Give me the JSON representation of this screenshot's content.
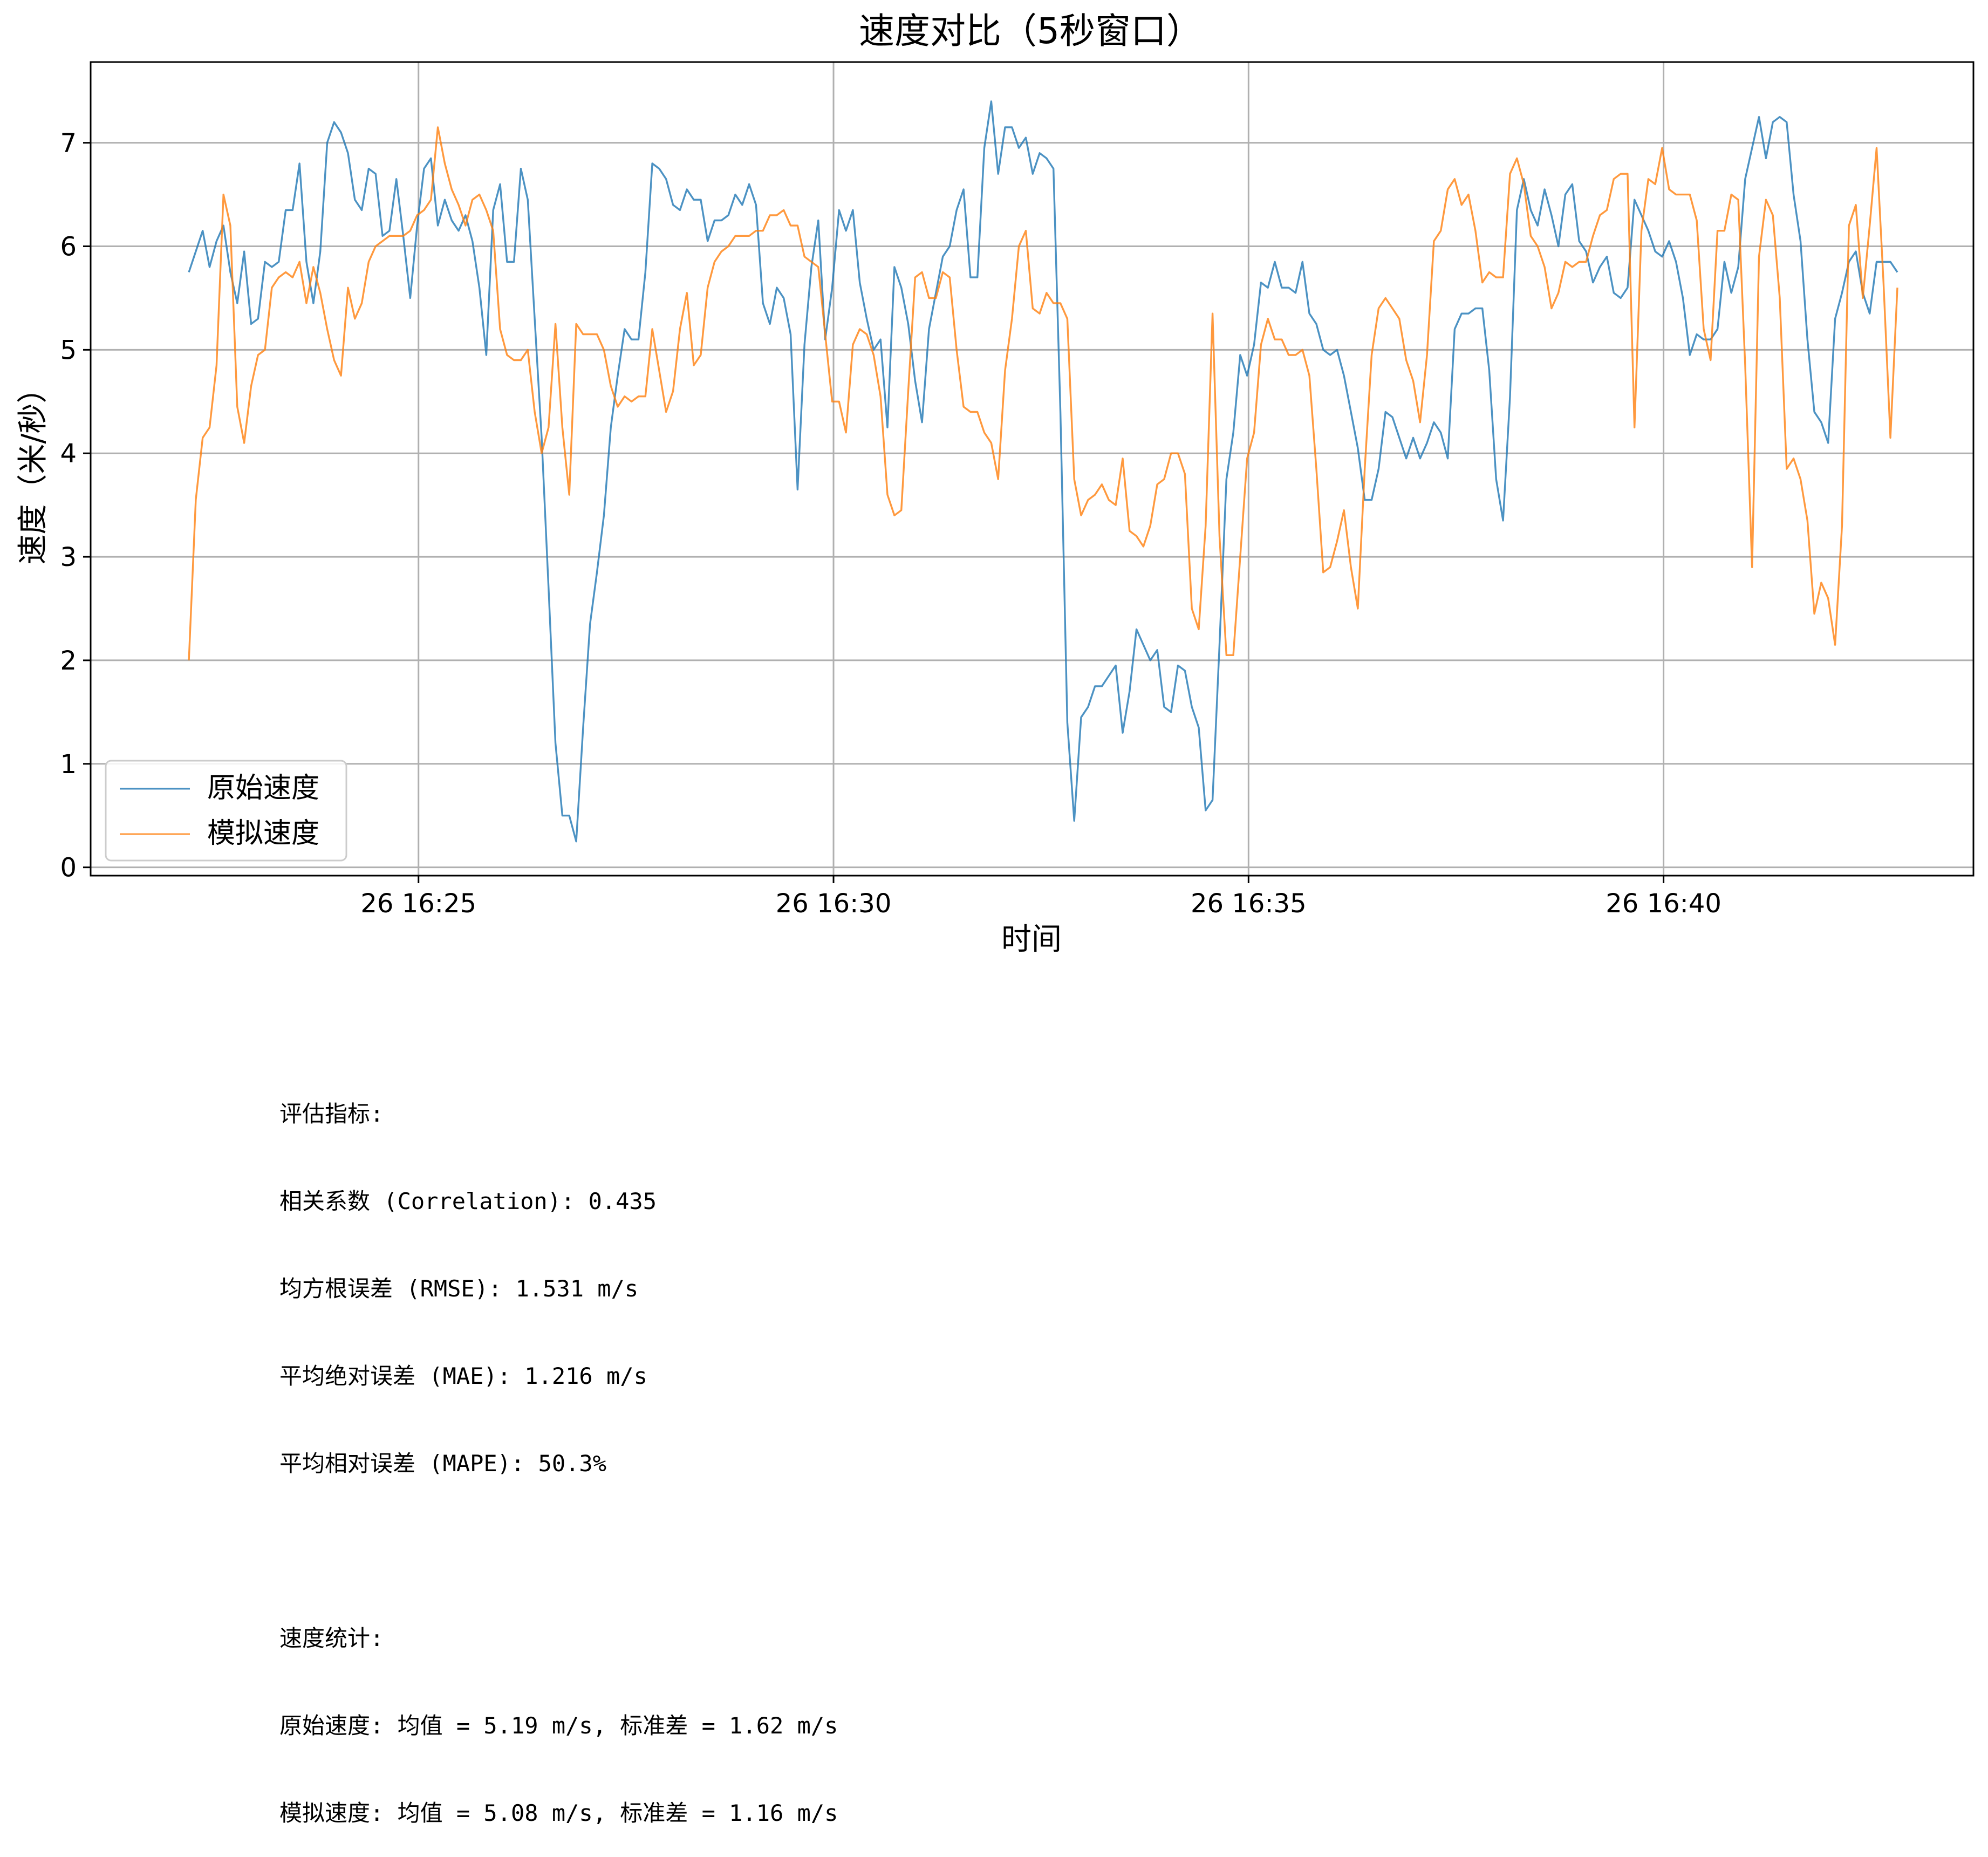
{
  "chart_data": {
    "type": "line",
    "title": "速度对比（5秒窗口）",
    "xlabel": "时间",
    "ylabel": "速度（米/秒）",
    "x_start": "16:22:14",
    "x_interval_seconds": 5,
    "xlim": [
      "16:21:03",
      "16:43:44"
    ],
    "ylim": [
      -0.08,
      7.78
    ],
    "x_ticks": [
      "26 16:25",
      "26 16:30",
      "26 16:35",
      "26 16:40"
    ],
    "y_ticks": [
      "0",
      "1",
      "2",
      "3",
      "4",
      "5",
      "6",
      "7"
    ],
    "grid": true,
    "legend_position": "lower-left",
    "series": [
      {
        "name": "原始速度",
        "color": "#1f77b4",
        "values": [
          5.75,
          5.95,
          6.15,
          5.8,
          6.05,
          6.2,
          5.75,
          5.45,
          5.95,
          5.25,
          5.3,
          5.85,
          5.8,
          5.85,
          6.35,
          6.35,
          6.8,
          5.85,
          5.45,
          5.95,
          7.0,
          7.2,
          7.1,
          6.9,
          6.45,
          6.35,
          6.75,
          6.7,
          6.1,
          6.15,
          6.65,
          6.1,
          5.5,
          6.2,
          6.75,
          6.85,
          6.2,
          6.45,
          6.25,
          6.15,
          6.3,
          6.05,
          5.6,
          4.95,
          6.35,
          6.6,
          5.85,
          5.85,
          6.75,
          6.45,
          5.3,
          4.15,
          2.7,
          1.2,
          0.5,
          0.5,
          0.25,
          1.35,
          2.35,
          2.85,
          3.4,
          4.25,
          4.75,
          5.2,
          5.1,
          5.1,
          5.75,
          6.8,
          6.75,
          6.65,
          6.4,
          6.35,
          6.55,
          6.45,
          6.45,
          6.05,
          6.25,
          6.25,
          6.3,
          6.5,
          6.4,
          6.6,
          6.4,
          5.45,
          5.25,
          5.6,
          5.5,
          5.15,
          3.65,
          5.05,
          5.8,
          6.25,
          5.1,
          5.6,
          6.35,
          6.15,
          6.35,
          5.65,
          5.3,
          5.0,
          5.1,
          4.25,
          5.8,
          5.6,
          5.25,
          4.7,
          4.3,
          5.2,
          5.55,
          5.9,
          6.0,
          6.35,
          6.55,
          5.7,
          5.7,
          6.95,
          7.4,
          6.7,
          7.15,
          7.15,
          6.95,
          7.05,
          6.7,
          6.9,
          6.85,
          6.75,
          4.4,
          1.4,
          0.45,
          1.45,
          1.55,
          1.75,
          1.75,
          1.85,
          1.95,
          1.3,
          1.7,
          2.3,
          2.15,
          2.0,
          2.1,
          1.55,
          1.5,
          1.95,
          1.9,
          1.55,
          1.35,
          0.55,
          0.65,
          2.15,
          3.75,
          4.2,
          4.95,
          4.75,
          5.05,
          5.65,
          5.6,
          5.85,
          5.6,
          5.6,
          5.55,
          5.85,
          5.35,
          5.25,
          5.0,
          4.95,
          5.0,
          4.75,
          4.4,
          4.05,
          3.55,
          3.55,
          3.85,
          4.4,
          4.35,
          4.15,
          3.95,
          4.15,
          3.95,
          4.1,
          4.3,
          4.2,
          3.95,
          5.2,
          5.35,
          5.35,
          5.4,
          5.4,
          4.8,
          3.75,
          3.35,
          4.55,
          6.35,
          6.65,
          6.35,
          6.2,
          6.55,
          6.3,
          6.0,
          6.5,
          6.6,
          6.05,
          5.95,
          5.65,
          5.8,
          5.9,
          5.55,
          5.5,
          5.6,
          6.45,
          6.3,
          6.15,
          5.95,
          5.9,
          6.05,
          5.85,
          5.5,
          4.95,
          5.15,
          5.1,
          5.1,
          5.2,
          5.85,
          5.55,
          5.8,
          6.65,
          6.95,
          7.25,
          6.85,
          7.2,
          7.25,
          7.2,
          6.5,
          6.05,
          5.1,
          4.4,
          4.3,
          4.1,
          5.3,
          5.55,
          5.85,
          5.95,
          5.55,
          5.35,
          5.85,
          5.85,
          5.85,
          5.75
        ]
      },
      {
        "name": "模拟速度",
        "color": "#ff7f0e",
        "values": [
          2.0,
          3.55,
          4.15,
          4.25,
          4.85,
          6.5,
          6.2,
          4.45,
          4.1,
          4.65,
          4.95,
          5.0,
          5.6,
          5.7,
          5.75,
          5.7,
          5.85,
          5.45,
          5.8,
          5.55,
          5.2,
          4.9,
          4.75,
          5.6,
          5.3,
          5.45,
          5.85,
          6.0,
          6.05,
          6.1,
          6.1,
          6.1,
          6.15,
          6.3,
          6.35,
          6.45,
          7.15,
          6.8,
          6.55,
          6.4,
          6.2,
          6.45,
          6.5,
          6.35,
          6.15,
          5.2,
          4.95,
          4.9,
          4.9,
          5.0,
          4.4,
          4.0,
          4.25,
          5.25,
          4.25,
          3.6,
          5.25,
          5.15,
          5.15,
          5.15,
          5.0,
          4.65,
          4.45,
          4.55,
          4.5,
          4.55,
          4.55,
          5.2,
          4.8,
          4.4,
          4.6,
          5.2,
          5.55,
          4.85,
          4.95,
          5.6,
          5.85,
          5.95,
          6.0,
          6.1,
          6.1,
          6.1,
          6.15,
          6.15,
          6.3,
          6.3,
          6.35,
          6.2,
          6.2,
          5.9,
          5.85,
          5.8,
          5.15,
          4.5,
          4.5,
          4.2,
          5.05,
          5.2,
          5.15,
          4.95,
          4.55,
          3.6,
          3.4,
          3.45,
          4.6,
          5.7,
          5.75,
          5.5,
          5.5,
          5.75,
          5.7,
          5.0,
          4.45,
          4.4,
          4.4,
          4.2,
          4.1,
          3.75,
          4.8,
          5.3,
          6.0,
          6.15,
          5.4,
          5.35,
          5.55,
          5.45,
          5.45,
          5.3,
          3.75,
          3.4,
          3.55,
          3.6,
          3.7,
          3.55,
          3.5,
          3.95,
          3.25,
          3.2,
          3.1,
          3.3,
          3.7,
          3.75,
          4.0,
          4.0,
          3.8,
          2.5,
          2.3,
          3.3,
          5.35,
          3.2,
          2.05,
          2.05,
          3.0,
          3.95,
          4.2,
          5.05,
          5.3,
          5.1,
          5.1,
          4.95,
          4.95,
          5.0,
          4.75,
          3.85,
          2.85,
          2.9,
          3.15,
          3.45,
          2.9,
          2.5,
          3.85,
          4.95,
          5.4,
          5.5,
          5.4,
          5.3,
          4.9,
          4.7,
          4.3,
          4.95,
          6.05,
          6.15,
          6.55,
          6.65,
          6.4,
          6.5,
          6.15,
          5.65,
          5.75,
          5.7,
          5.7,
          6.7,
          6.85,
          6.6,
          6.1,
          6.0,
          5.8,
          5.4,
          5.55,
          5.85,
          5.8,
          5.85,
          5.85,
          6.1,
          6.3,
          6.35,
          6.65,
          6.7,
          6.7,
          4.25,
          6.15,
          6.65,
          6.6,
          6.95,
          6.55,
          6.5,
          6.5,
          6.5,
          6.25,
          5.2,
          4.9,
          6.15,
          6.15,
          6.5,
          6.45,
          4.85,
          2.9,
          5.9,
          6.45,
          6.3,
          5.5,
          3.85,
          3.95,
          3.75,
          3.35,
          2.45,
          2.75,
          2.6,
          2.15,
          3.3,
          6.2,
          6.4,
          5.5,
          6.2,
          6.95,
          5.65,
          4.15,
          5.6
        ]
      }
    ]
  },
  "metrics_block": {
    "heading": "评估指标:",
    "correlation": "相关系数 (Correlation): 0.435",
    "rmse": "均方根误差 (RMSE): 1.531 m/s",
    "mae": "平均绝对误差 (MAE): 1.216 m/s",
    "mape": "平均相对误差 (MAPE): 50.3%"
  },
  "stats_block": {
    "heading": "速度统计:",
    "original": "原始速度: 均值 = 5.19 m/s, 标准差 = 1.62 m/s",
    "simulated": "模拟速度: 均值 = 5.08 m/s, 标准差 = 1.16 m/s"
  }
}
